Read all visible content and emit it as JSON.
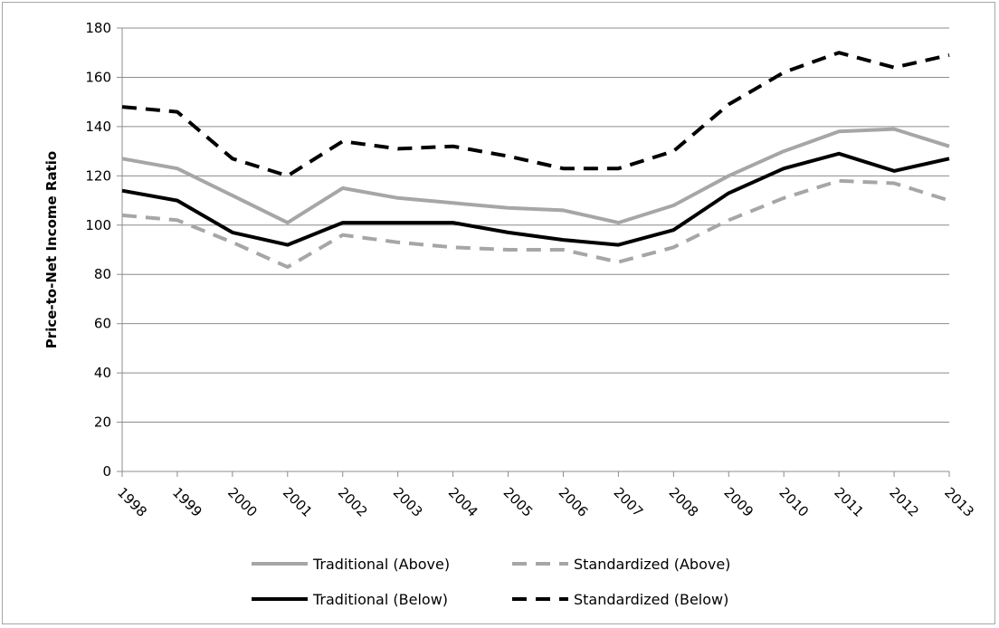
{
  "chart_data": {
    "type": "line",
    "title": "",
    "xlabel": "",
    "ylabel": "Price-to-Net Income Ratio",
    "x": [
      "1998",
      "1999",
      "2000",
      "2001",
      "2002",
      "2003",
      "2004",
      "2005",
      "2006",
      "2007",
      "2008",
      "2009",
      "2010",
      "2011",
      "2012",
      "2013"
    ],
    "ylim": [
      0,
      180
    ],
    "yticks": [
      0,
      20,
      40,
      60,
      80,
      100,
      120,
      140,
      160,
      180
    ],
    "grid": true,
    "legend_position": "bottom",
    "series": [
      {
        "name": "Traditional (Above)",
        "color": "#a6a6a6",
        "dash": "solid",
        "values": [
          127,
          123,
          112,
          101,
          115,
          111,
          109,
          107,
          106,
          101,
          108,
          120,
          130,
          138,
          139,
          132
        ]
      },
      {
        "name": "Standardized (Above)",
        "color": "#a6a6a6",
        "dash": "dashed",
        "values": [
          104,
          102,
          93,
          83,
          96,
          93,
          91,
          90,
          90,
          85,
          91,
          102,
          111,
          118,
          117,
          110
        ]
      },
      {
        "name": "Traditional (Below)",
        "color": "#000000",
        "dash": "solid",
        "values": [
          114,
          110,
          97,
          92,
          101,
          101,
          101,
          97,
          94,
          92,
          98,
          113,
          123,
          129,
          122,
          127
        ]
      },
      {
        "name": "Standardized (Below)",
        "color": "#000000",
        "dash": "dashed",
        "values": [
          148,
          146,
          127,
          120,
          134,
          131,
          132,
          128,
          123,
          123,
          130,
          149,
          162,
          170,
          164,
          169
        ]
      }
    ]
  }
}
